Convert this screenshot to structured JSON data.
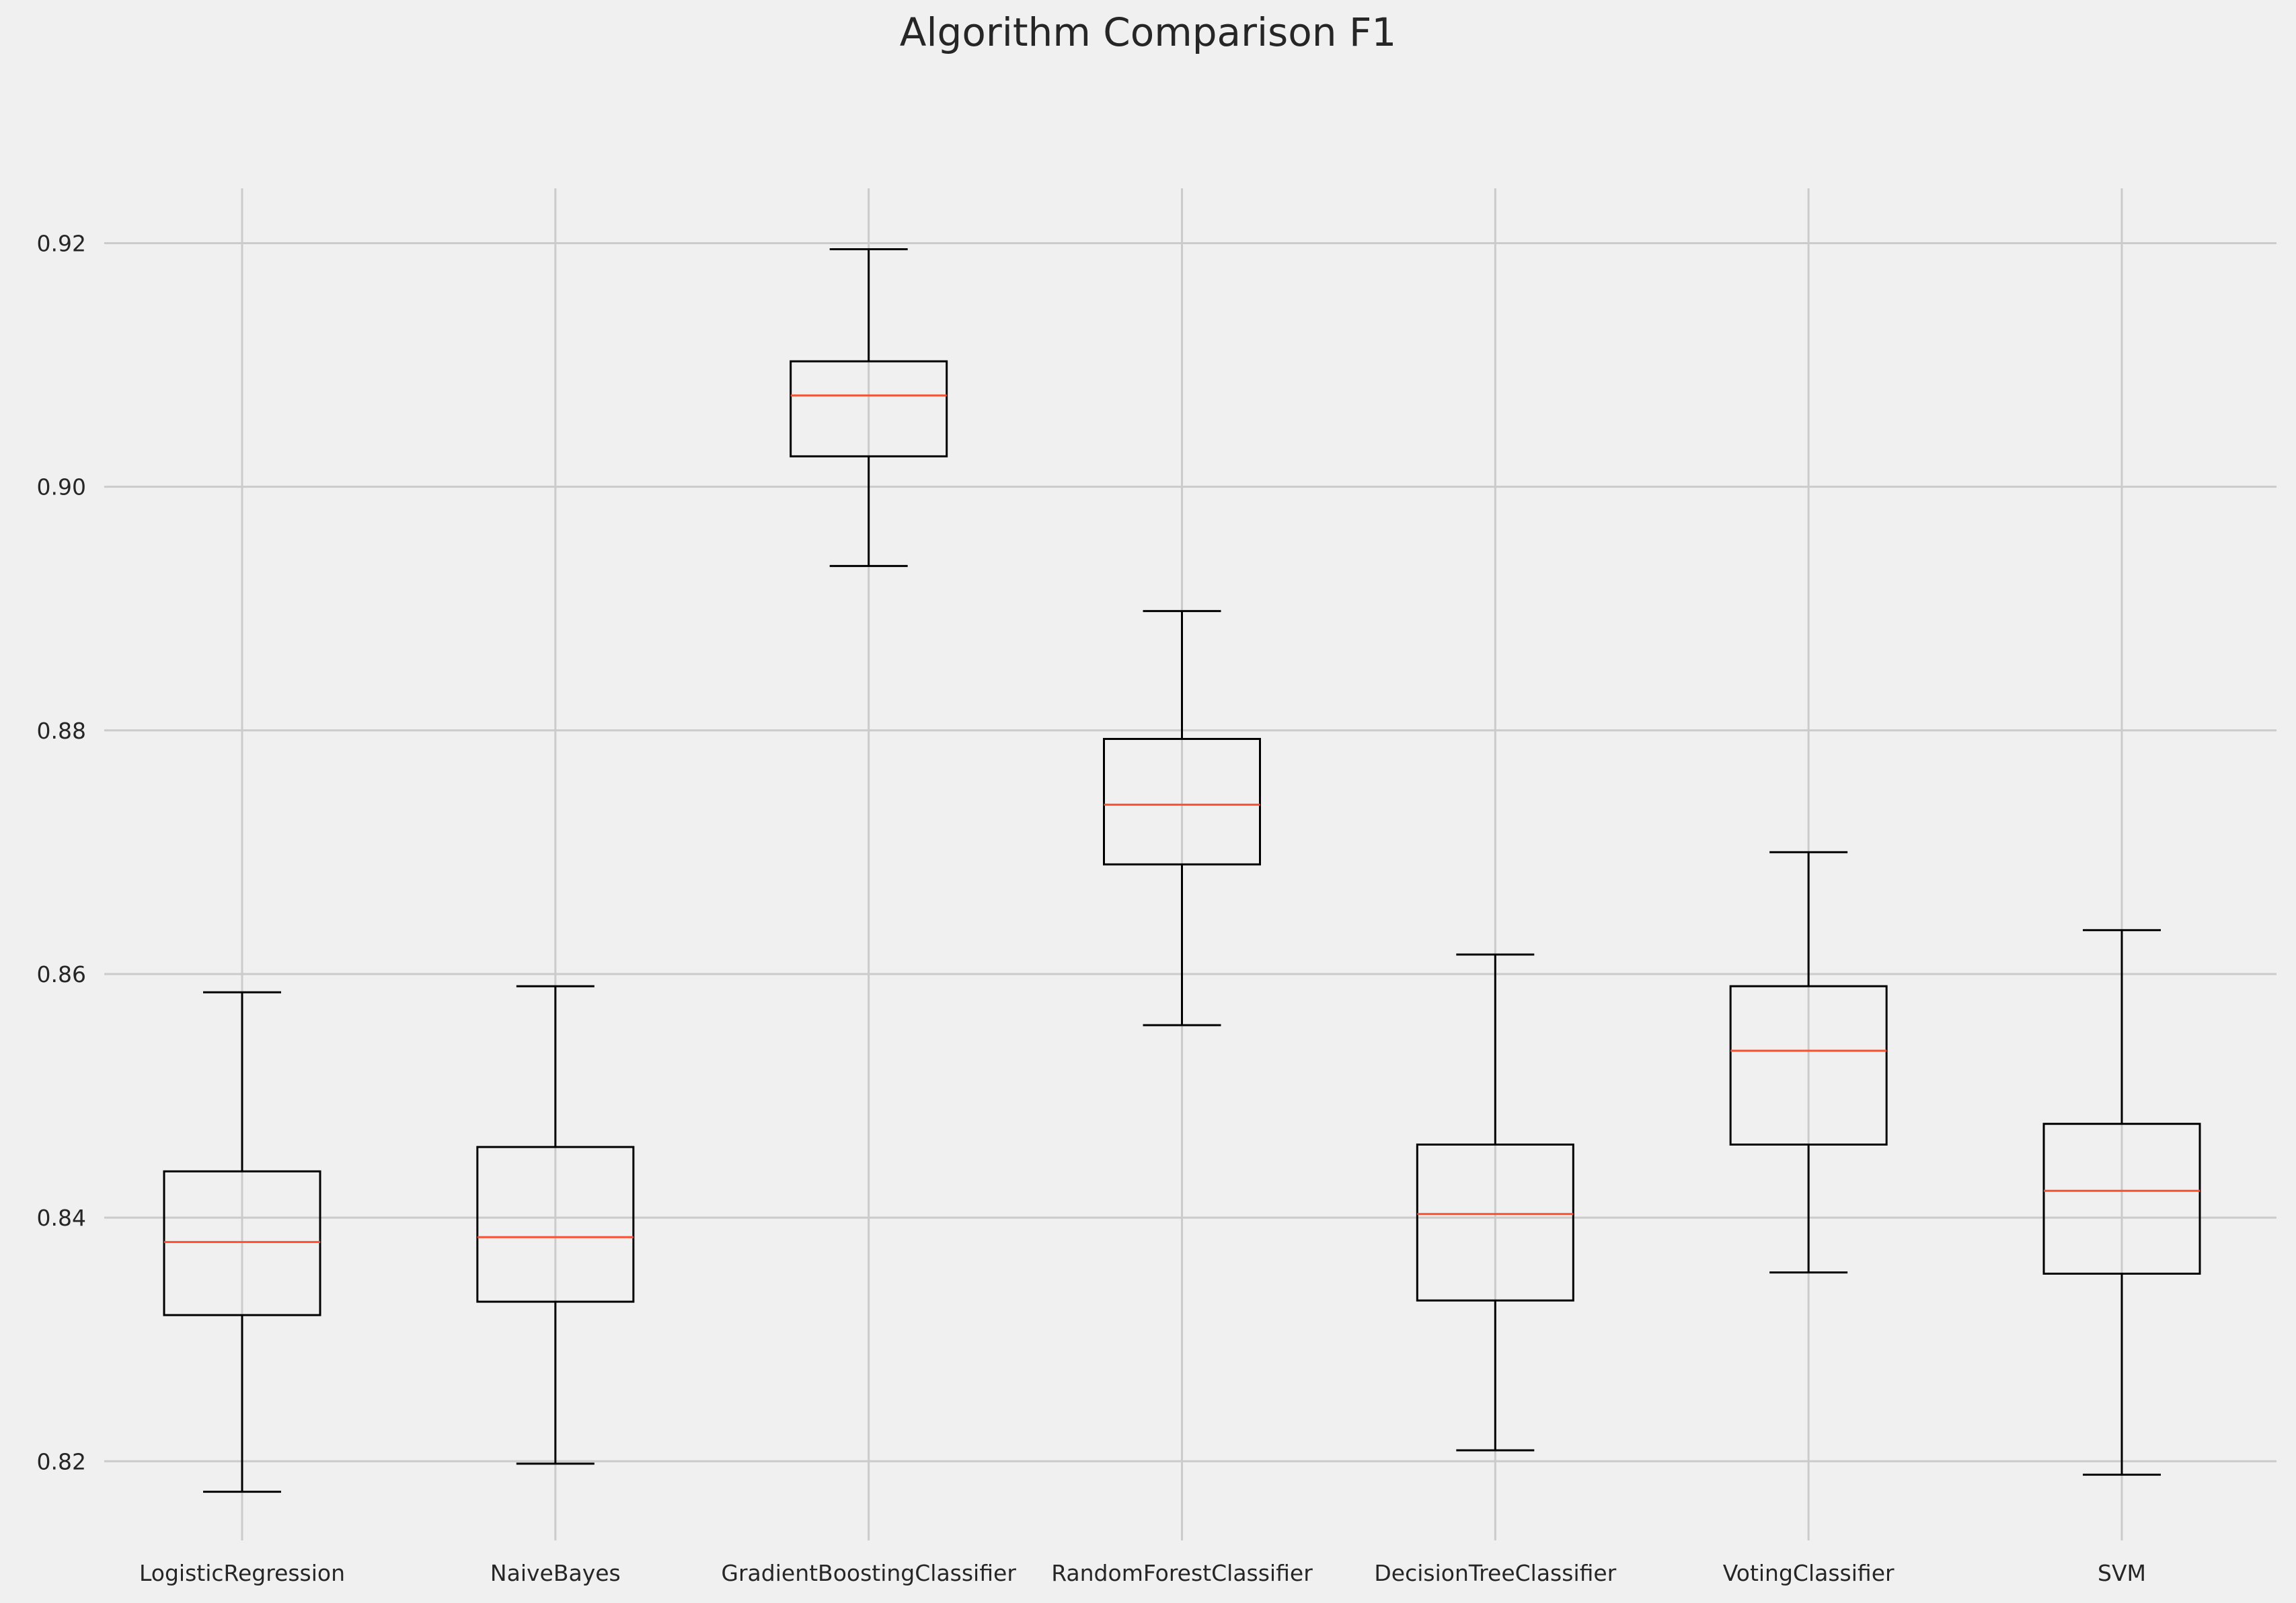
{
  "chart_data": {
    "type": "boxplot",
    "title": "Algorithm Comparison F1",
    "xlabel": "",
    "ylabel": "",
    "ylim": [
      0.8135,
      0.9245
    ],
    "yticks": [
      0.82,
      0.84,
      0.86,
      0.88,
      0.9,
      0.92
    ],
    "ytick_labels": [
      "0.82",
      "0.84",
      "0.86",
      "0.88",
      "0.90",
      "0.92"
    ],
    "grid": true,
    "colors": {
      "background": "#f0f0f0",
      "grid": "#cbcbcb",
      "box": "#000000",
      "median": "#fc4f30",
      "text": "#262626"
    },
    "categories": [
      "LogisticRegression",
      "NaiveBayes",
      "GradientBoostingClassifier",
      "RandomForestClassifier",
      "DecisionTreeClassifier",
      "VotingClassifier",
      "SVM"
    ],
    "boxes": [
      {
        "whisker_low": 0.8175,
        "q1": 0.832,
        "median": 0.838,
        "q3": 0.8438,
        "whisker_high": 0.8585
      },
      {
        "whisker_low": 0.8198,
        "q1": 0.8331,
        "median": 0.8384,
        "q3": 0.8458,
        "whisker_high": 0.859
      },
      {
        "whisker_low": 0.8935,
        "q1": 0.9025,
        "median": 0.9075,
        "q3": 0.9103,
        "whisker_high": 0.9195
      },
      {
        "whisker_low": 0.8558,
        "q1": 0.869,
        "median": 0.8739,
        "q3": 0.8793,
        "whisker_high": 0.8898
      },
      {
        "whisker_low": 0.8209,
        "q1": 0.8332,
        "median": 0.8403,
        "q3": 0.846,
        "whisker_high": 0.8616
      },
      {
        "whisker_low": 0.8355,
        "q1": 0.846,
        "median": 0.8537,
        "q3": 0.859,
        "whisker_high": 0.87
      },
      {
        "whisker_low": 0.8189,
        "q1": 0.8354,
        "median": 0.8422,
        "q3": 0.8477,
        "whisker_high": 0.8636
      }
    ]
  }
}
